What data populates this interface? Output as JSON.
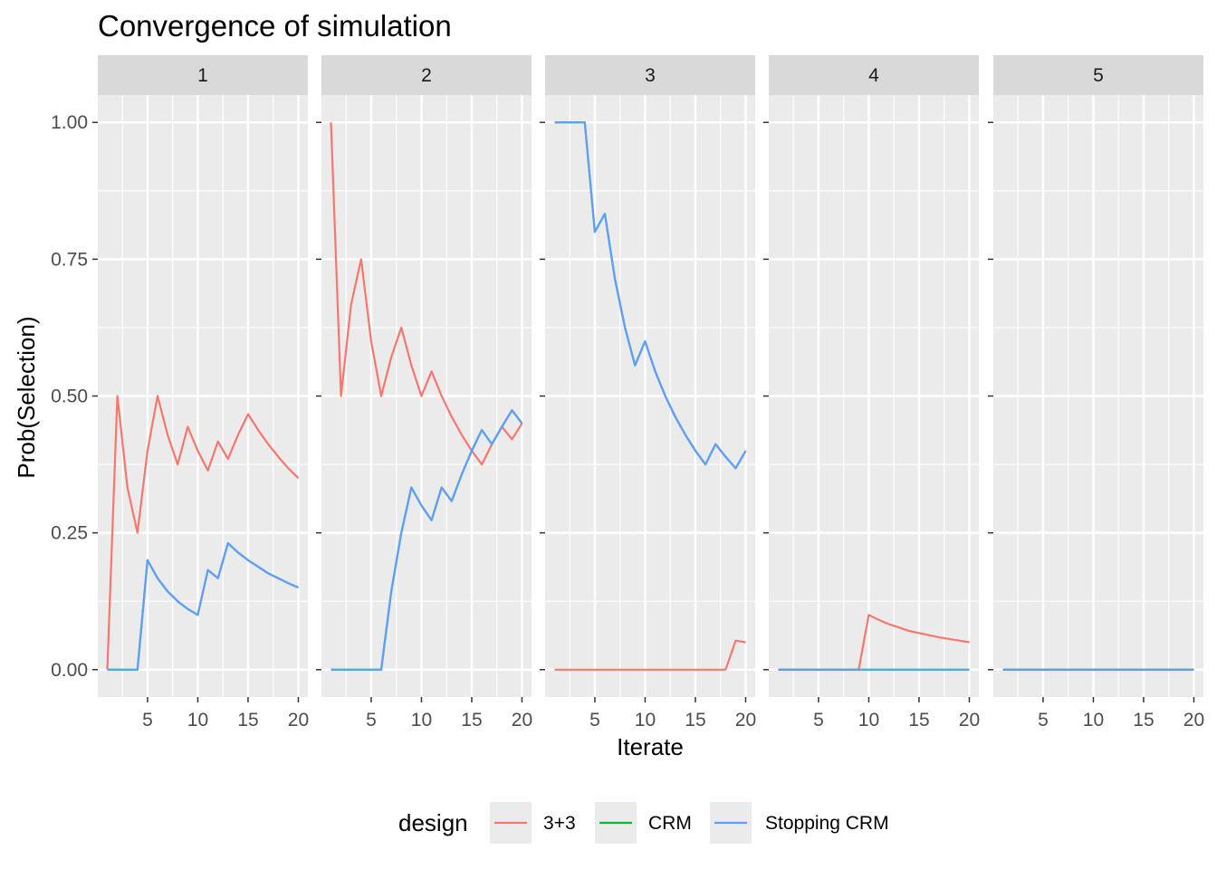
{
  "chart_data": {
    "type": "line",
    "title": "Convergence of simulation",
    "xlabel": "Iterate",
    "ylabel": "Prob(Selection)",
    "xlim": [
      0.05,
      20.95
    ],
    "ylim": [
      -0.05,
      1.05
    ],
    "x_ticks": [
      5,
      10,
      15,
      20
    ],
    "x_tick_labels": [
      "5",
      "10",
      "15",
      "20"
    ],
    "y_ticks": [
      0,
      0.25,
      0.5,
      0.75,
      1.0
    ],
    "y_tick_labels": [
      "0.00",
      "0.25",
      "0.50",
      "0.75",
      "1.00"
    ],
    "grid": true,
    "legend": {
      "title": "design",
      "position": "bottom",
      "entries": [
        {
          "label": "3+3",
          "color": "#F8766D"
        },
        {
          "label": "CRM",
          "color": "#00BA38"
        },
        {
          "label": "Stopping CRM",
          "color": "#619CFF"
        }
      ]
    },
    "panels": [
      {
        "strip": "1",
        "series": [
          {
            "name": "3+3",
            "color": "#F8766D",
            "x": [
              1,
              2,
              3,
              4,
              5,
              6,
              7,
              8,
              9,
              10,
              11,
              12,
              13,
              14,
              15,
              16,
              17,
              18,
              19,
              20
            ],
            "y": [
              0,
              0.5,
              0.333,
              0.25,
              0.4,
              0.5,
              0.429,
              0.375,
              0.444,
              0.4,
              0.364,
              0.417,
              0.385,
              0.429,
              0.467,
              0.438,
              0.412,
              0.389,
              0.368,
              0.35
            ]
          },
          {
            "name": "CRM",
            "color": "#00BA38",
            "x": [
              1,
              2,
              3,
              4,
              5,
              6,
              7,
              8,
              9,
              10,
              11,
              12,
              13,
              14,
              15,
              16,
              17,
              18,
              19,
              20
            ],
            "y": [
              0,
              0,
              0,
              0,
              0.2,
              0.167,
              0.143,
              0.125,
              0.111,
              0.1,
              0.182,
              0.167,
              0.231,
              0.214,
              0.2,
              0.188,
              0.176,
              0.167,
              0.158,
              0.15
            ]
          },
          {
            "name": "Stopping CRM",
            "color": "#619CFF",
            "x": [
              1,
              2,
              3,
              4,
              5,
              6,
              7,
              8,
              9,
              10,
              11,
              12,
              13,
              14,
              15,
              16,
              17,
              18,
              19,
              20
            ],
            "y": [
              0,
              0,
              0,
              0,
              0.2,
              0.167,
              0.143,
              0.125,
              0.111,
              0.1,
              0.182,
              0.167,
              0.231,
              0.214,
              0.2,
              0.188,
              0.176,
              0.167,
              0.158,
              0.15
            ]
          }
        ]
      },
      {
        "strip": "2",
        "series": [
          {
            "name": "3+3",
            "color": "#F8766D",
            "x": [
              1,
              2,
              3,
              4,
              5,
              6,
              7,
              8,
              9,
              10,
              11,
              12,
              13,
              14,
              15,
              16,
              17,
              18,
              19,
              20
            ],
            "y": [
              1.0,
              0.5,
              0.667,
              0.75,
              0.6,
              0.5,
              0.571,
              0.625,
              0.556,
              0.5,
              0.545,
              0.5,
              0.462,
              0.429,
              0.4,
              0.375,
              0.412,
              0.444,
              0.421,
              0.45
            ]
          },
          {
            "name": "CRM",
            "color": "#00BA38",
            "x": [
              1,
              2,
              3,
              4,
              5,
              6,
              7,
              8,
              9,
              10,
              11,
              12,
              13,
              14,
              15,
              16,
              17,
              18,
              19,
              20
            ],
            "y": [
              0,
              0,
              0,
              0,
              0,
              0,
              0.143,
              0.25,
              0.333,
              0.3,
              0.273,
              0.333,
              0.308,
              0.357,
              0.4,
              0.438,
              0.412,
              0.444,
              0.474,
              0.45
            ]
          },
          {
            "name": "Stopping CRM",
            "color": "#619CFF",
            "x": [
              1,
              2,
              3,
              4,
              5,
              6,
              7,
              8,
              9,
              10,
              11,
              12,
              13,
              14,
              15,
              16,
              17,
              18,
              19,
              20
            ],
            "y": [
              0,
              0,
              0,
              0,
              0,
              0,
              0.143,
              0.25,
              0.333,
              0.3,
              0.273,
              0.333,
              0.308,
              0.357,
              0.4,
              0.438,
              0.412,
              0.444,
              0.474,
              0.45
            ]
          }
        ]
      },
      {
        "strip": "3",
        "series": [
          {
            "name": "3+3",
            "color": "#F8766D",
            "x": [
              1,
              2,
              3,
              4,
              5,
              6,
              7,
              8,
              9,
              10,
              11,
              12,
              13,
              14,
              15,
              16,
              17,
              18,
              19,
              20
            ],
            "y": [
              0,
              0,
              0,
              0,
              0,
              0,
              0,
              0,
              0,
              0,
              0,
              0,
              0,
              0,
              0,
              0,
              0,
              0,
              0.053,
              0.05
            ]
          },
          {
            "name": "CRM",
            "color": "#00BA38",
            "x": [
              1,
              2,
              3,
              4,
              5,
              6,
              7,
              8,
              9,
              10,
              11,
              12,
              13,
              14,
              15,
              16,
              17,
              18,
              19,
              20
            ],
            "y": [
              1.0,
              1.0,
              1.0,
              1.0,
              0.8,
              0.833,
              0.714,
              0.625,
              0.556,
              0.6,
              0.545,
              0.5,
              0.462,
              0.429,
              0.4,
              0.375,
              0.412,
              0.389,
              0.368,
              0.4
            ]
          },
          {
            "name": "Stopping CRM",
            "color": "#619CFF",
            "x": [
              1,
              2,
              3,
              4,
              5,
              6,
              7,
              8,
              9,
              10,
              11,
              12,
              13,
              14,
              15,
              16,
              17,
              18,
              19,
              20
            ],
            "y": [
              1.0,
              1.0,
              1.0,
              1.0,
              0.8,
              0.833,
              0.714,
              0.625,
              0.556,
              0.6,
              0.545,
              0.5,
              0.462,
              0.429,
              0.4,
              0.375,
              0.412,
              0.389,
              0.368,
              0.4
            ]
          }
        ]
      },
      {
        "strip": "4",
        "series": [
          {
            "name": "3+3",
            "color": "#F8766D",
            "x": [
              1,
              2,
              3,
              4,
              5,
              6,
              7,
              8,
              9,
              10,
              11,
              12,
              13,
              14,
              15,
              16,
              17,
              18,
              19,
              20
            ],
            "y": [
              0,
              0,
              0,
              0,
              0,
              0,
              0,
              0,
              0,
              0.1,
              0.091,
              0.083,
              0.077,
              0.071,
              0.067,
              0.063,
              0.059,
              0.056,
              0.053,
              0.05
            ]
          },
          {
            "name": "CRM",
            "color": "#00BA38",
            "x": [
              1,
              2,
              3,
              4,
              5,
              6,
              7,
              8,
              9,
              10,
              11,
              12,
              13,
              14,
              15,
              16,
              17,
              18,
              19,
              20
            ],
            "y": [
              0,
              0,
              0,
              0,
              0,
              0,
              0,
              0,
              0,
              0,
              0,
              0,
              0,
              0,
              0,
              0,
              0,
              0,
              0,
              0
            ]
          },
          {
            "name": "Stopping CRM",
            "color": "#619CFF",
            "x": [
              1,
              2,
              3,
              4,
              5,
              6,
              7,
              8,
              9,
              10,
              11,
              12,
              13,
              14,
              15,
              16,
              17,
              18,
              19,
              20
            ],
            "y": [
              0,
              0,
              0,
              0,
              0,
              0,
              0,
              0,
              0,
              0,
              0,
              0,
              0,
              0,
              0,
              0,
              0,
              0,
              0,
              0
            ]
          }
        ]
      },
      {
        "strip": "5",
        "series": [
          {
            "name": "3+3",
            "color": "#F8766D",
            "x": [
              1,
              2,
              3,
              4,
              5,
              6,
              7,
              8,
              9,
              10,
              11,
              12,
              13,
              14,
              15,
              16,
              17,
              18,
              19,
              20
            ],
            "y": [
              0,
              0,
              0,
              0,
              0,
              0,
              0,
              0,
              0,
              0,
              0,
              0,
              0,
              0,
              0,
              0,
              0,
              0,
              0,
              0
            ]
          },
          {
            "name": "CRM",
            "color": "#00BA38",
            "x": [
              1,
              2,
              3,
              4,
              5,
              6,
              7,
              8,
              9,
              10,
              11,
              12,
              13,
              14,
              15,
              16,
              17,
              18,
              19,
              20
            ],
            "y": [
              0,
              0,
              0,
              0,
              0,
              0,
              0,
              0,
              0,
              0,
              0,
              0,
              0,
              0,
              0,
              0,
              0,
              0,
              0,
              0
            ]
          },
          {
            "name": "Stopping CRM",
            "color": "#619CFF",
            "x": [
              1,
              2,
              3,
              4,
              5,
              6,
              7,
              8,
              9,
              10,
              11,
              12,
              13,
              14,
              15,
              16,
              17,
              18,
              19,
              20
            ],
            "y": [
              0,
              0,
              0,
              0,
              0,
              0,
              0,
              0,
              0,
              0,
              0,
              0,
              0,
              0,
              0,
              0,
              0,
              0,
              0,
              0
            ]
          }
        ]
      }
    ]
  }
}
